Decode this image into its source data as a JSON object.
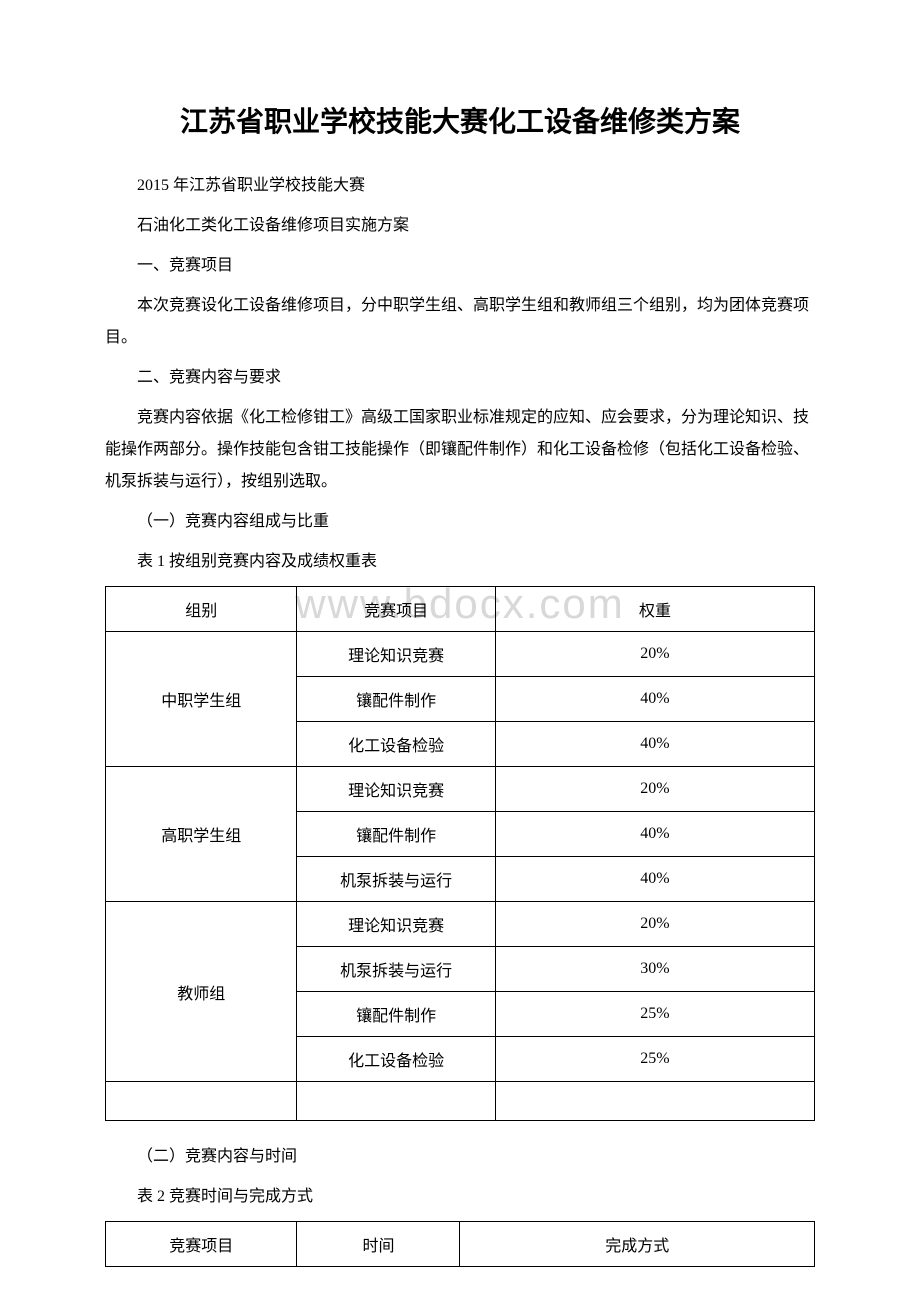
{
  "title": "江苏省职业学校技能大赛化工设备维修类方案",
  "paragraphs": {
    "p1": "2015 年江苏省职业学校技能大赛",
    "p2": "石油化工类化工设备维修项目实施方案",
    "p3": "一、竞赛项目",
    "p4": "本次竞赛设化工设备维修项目，分中职学生组、高职学生组和教师组三个组别，均为团体竞赛项目。",
    "p5": "二、竞赛内容与要求",
    "p6": "竞赛内容依据《化工检修钳工》高级工国家职业标准规定的应知、应会要求，分为理论知识、技能操作两部分。操作技能包含钳工技能操作（即镶配件制作）和化工设备检修（包括化工设备检验、机泵拆装与运行），按组别选取。",
    "p7": "（一）竞赛内容组成与比重",
    "p8": "表 1 按组别竞赛内容及成绩权重表",
    "p9": "（二）竞赛内容与时间",
    "p10": "表 2 竞赛时间与完成方式"
  },
  "watermark": "www.bdocx.com",
  "table1": {
    "headers": [
      "组别",
      "竞赛项目",
      "权重"
    ],
    "groups": [
      {
        "group_label": "中职学生组",
        "rows": [
          {
            "item": "理论知识竞赛",
            "weight": "20%"
          },
          {
            "item": "镶配件制作",
            "weight": "40%"
          },
          {
            "item": "化工设备检验",
            "weight": "40%"
          }
        ]
      },
      {
        "group_label": "高职学生组",
        "rows": [
          {
            "item": "理论知识竞赛",
            "weight": "20%"
          },
          {
            "item": "镶配件制作",
            "weight": "40%"
          },
          {
            "item": "机泵拆装与运行",
            "weight": "40%"
          }
        ]
      },
      {
        "group_label": "教师组",
        "rows": [
          {
            "item": "理论知识竞赛",
            "weight": "20%"
          },
          {
            "item": "机泵拆装与运行",
            "weight": "30%"
          },
          {
            "item": "镶配件制作",
            "weight": "25%"
          },
          {
            "item": "化工设备检验",
            "weight": "25%"
          }
        ]
      }
    ],
    "empty_row": true
  },
  "table2": {
    "headers": [
      "竞赛项目",
      "时间",
      "完成方式"
    ]
  }
}
